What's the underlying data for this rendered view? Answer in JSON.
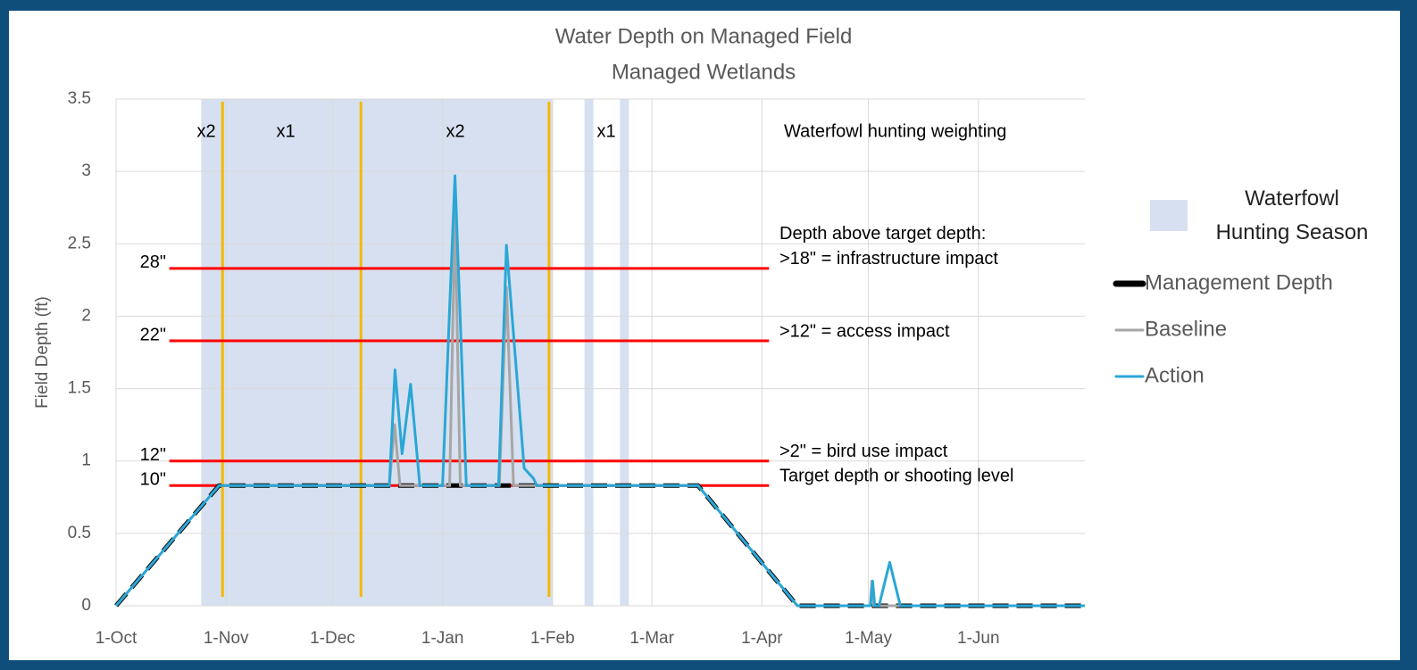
{
  "chart_data": {
    "type": "line",
    "title": [
      "Water Depth on Managed Field",
      "Managed Wetlands"
    ],
    "ylabel": "Field Depth (ft)",
    "xlim": [
      0,
      273
    ],
    "ylim": [
      0,
      3.5
    ],
    "xticks": [
      {
        "value": 0,
        "label": "1-Oct"
      },
      {
        "value": 31,
        "label": "1-Nov"
      },
      {
        "value": 61,
        "label": "1-Dec"
      },
      {
        "value": 92,
        "label": "1-Jan"
      },
      {
        "value": 123,
        "label": "1-Feb"
      },
      {
        "value": 151,
        "label": "1-Mar"
      },
      {
        "value": 182,
        "label": "1-Apr"
      },
      {
        "value": 212,
        "label": "1-May"
      },
      {
        "value": 243,
        "label": "1-Jun"
      }
    ],
    "yticks": [
      0,
      0.5,
      1,
      1.5,
      2,
      2.5,
      3,
      3.5
    ],
    "grid": true,
    "hunting_season": {
      "name": "Waterfowl Hunting Season",
      "color": "#d6e0f0",
      "spans": [
        [
          24,
          123
        ],
        [
          132,
          134.5
        ],
        [
          142,
          144.5
        ]
      ]
    },
    "weighting": {
      "label": "Waterfowl hunting weighting",
      "periods": [
        "x2",
        "x1",
        "x2",
        "x1"
      ],
      "boundaries": [
        30,
        69,
        122
      ],
      "color": "#f5b800"
    },
    "thresholds": {
      "color": "#ff0000",
      "span": [
        15,
        184
      ],
      "items": [
        {
          "label": "28\"",
          "value": 2.33,
          "note": [
            "Depth above target depth:",
            ">18\" = infrastructure impact"
          ]
        },
        {
          "label": "22\"",
          "value": 1.83,
          "note": [
            ">12\" = access impact"
          ]
        },
        {
          "label": "12\"",
          "value": 1.0,
          "note": [
            ">2\" = bird use impact"
          ]
        },
        {
          "label": "10\"",
          "value": 0.83,
          "note": [
            "Target depth or shooting level"
          ]
        }
      ]
    },
    "series": [
      {
        "name": "Management Depth",
        "color": "#000000",
        "dashed": true,
        "x": [
          0,
          29,
          164,
          192,
          273
        ],
        "values": [
          0,
          0.83,
          0.83,
          0,
          0
        ]
      },
      {
        "name": "Baseline",
        "color": "#a6a6a6",
        "x": [
          0,
          29,
          77,
          78.5,
          80,
          94,
          95.5,
          97,
          108,
          110,
          112,
          164,
          192,
          212.5,
          213,
          213.5,
          273
        ],
        "values": [
          0,
          0.83,
          0.83,
          1.25,
          0.83,
          0.83,
          2.7,
          0.83,
          0.83,
          2.2,
          0.83,
          0.83,
          0,
          0,
          0.17,
          0,
          0
        ]
      },
      {
        "name": "Action",
        "color": "#2aa7d6",
        "x": [
          0,
          29,
          77,
          78.6,
          80.6,
          83,
          85.6,
          92,
          95.5,
          98.7,
          107.8,
          110,
          115,
          117.6,
          118.6,
          164,
          192,
          212.6,
          213.2,
          213.8,
          215,
          218,
          221,
          273
        ],
        "values": [
          0,
          0.83,
          0.83,
          1.63,
          1.05,
          1.53,
          0.83,
          0.83,
          2.97,
          0.83,
          0.83,
          2.49,
          0.95,
          0.88,
          0.83,
          0.83,
          0,
          0,
          0.17,
          0,
          0,
          0.3,
          0,
          0
        ]
      }
    ]
  }
}
